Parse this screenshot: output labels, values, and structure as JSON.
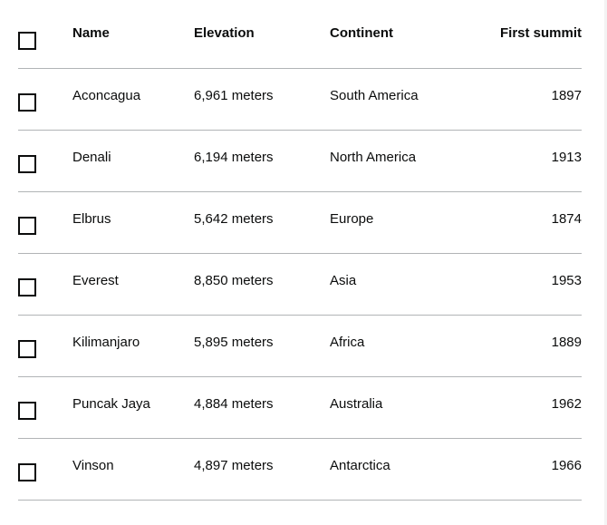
{
  "table": {
    "headers": {
      "name": "Name",
      "elevation": "Elevation",
      "continent": "Continent",
      "first_summit": "First summit"
    },
    "rows": [
      {
        "name": "Aconcagua",
        "elevation": "6,961 meters",
        "continent": "South America",
        "first_summit": "1897"
      },
      {
        "name": "Denali",
        "elevation": "6,194 meters",
        "continent": "North America",
        "first_summit": "1913"
      },
      {
        "name": "Elbrus",
        "elevation": "5,642 meters",
        "continent": "Europe",
        "first_summit": "1874"
      },
      {
        "name": "Everest",
        "elevation": "8,850 meters",
        "continent": "Asia",
        "first_summit": "1953"
      },
      {
        "name": "Kilimanjaro",
        "elevation": "5,895 meters",
        "continent": "Africa",
        "first_summit": "1889"
      },
      {
        "name": "Puncak Jaya",
        "elevation": "4,884 meters",
        "continent": "Australia",
        "first_summit": "1962"
      },
      {
        "name": "Vinson",
        "elevation": "4,897 meters",
        "continent": "Antarctica",
        "first_summit": "1966"
      }
    ]
  }
}
